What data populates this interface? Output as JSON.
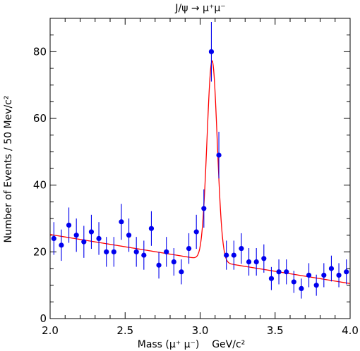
{
  "chart_data": {
    "type": "scatter",
    "title": "J/ψ → μ⁺μ⁻",
    "xlabel": "Mass (μ⁺ μ⁻)    GeV/c²",
    "ylabel": "Number of Events / 50 Mev/c²",
    "xlim": [
      2.0,
      4.0
    ],
    "ylim": [
      0,
      90
    ],
    "xticks": [
      2.0,
      2.5,
      3.0,
      3.5,
      4.0
    ],
    "xtick_labels": [
      "2.0",
      "2.5",
      "3.0",
      "3.5",
      "4.0"
    ],
    "yticks": [
      0,
      20,
      40,
      60,
      80
    ],
    "ytick_labels": [
      "0",
      "20",
      "40",
      "60",
      "80"
    ],
    "grid": false,
    "series": [
      {
        "kind": "data_points_with_errors",
        "color": "#0000ee",
        "x": [
          2.025,
          2.075,
          2.125,
          2.175,
          2.225,
          2.275,
          2.325,
          2.375,
          2.425,
          2.475,
          2.525,
          2.575,
          2.625,
          2.675,
          2.725,
          2.775,
          2.825,
          2.875,
          2.925,
          2.975,
          3.025,
          3.075,
          3.125,
          3.175,
          3.225,
          3.275,
          3.325,
          3.375,
          3.425,
          3.475,
          3.525,
          3.575,
          3.625,
          3.675,
          3.725,
          3.775,
          3.825,
          3.875,
          3.925,
          3.975
        ],
        "y": [
          24,
          22,
          28,
          25,
          23,
          26,
          24,
          20,
          20,
          29,
          25,
          20,
          19,
          27,
          16,
          20,
          17,
          14,
          21,
          26,
          33,
          80,
          49,
          19,
          19,
          21,
          17,
          17,
          18,
          12,
          14,
          14,
          11,
          9,
          13,
          10,
          13,
          15,
          13,
          14
        ]
      },
      {
        "kind": "fit_curve",
        "color": "#ff0000",
        "model": "gaussian_peak_plus_linear_background",
        "background": {
          "y_at_2.0": 25.2,
          "y_at_4.0": 10.5
        },
        "peak": {
          "mean": 3.08,
          "sigma": 0.034,
          "amplitude": 60
        }
      }
    ]
  }
}
